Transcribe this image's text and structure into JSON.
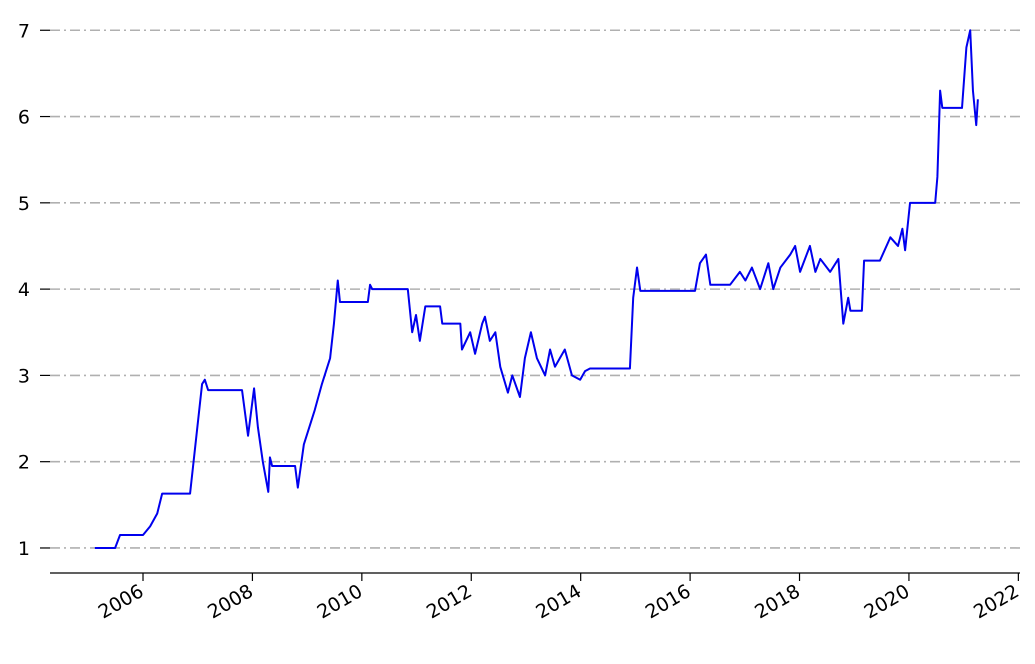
{
  "chart_data": {
    "type": "line",
    "color": "#0000ee",
    "grid": true,
    "xlim": [
      2004.3,
      2022.03
    ],
    "ylim": [
      0.71,
      7.2
    ],
    "xticks": [
      2006,
      2008,
      2010,
      2012,
      2014,
      2016,
      2018,
      2020,
      2022
    ],
    "yticks": [
      1,
      2,
      3,
      4,
      5,
      6,
      7
    ],
    "x": [
      2005.12,
      2005.49,
      2005.58,
      2006.0,
      2006.13,
      2006.26,
      2006.35,
      2006.86,
      2007.08,
      2007.13,
      2007.19,
      2007.81,
      2007.92,
      2008.03,
      2008.1,
      2008.19,
      2008.29,
      2008.32,
      2008.36,
      2008.78,
      2008.83,
      2008.94,
      2009.14,
      2009.27,
      2009.42,
      2009.49,
      2009.56,
      2009.6,
      2010.11,
      2010.15,
      2010.19,
      2010.84,
      2010.92,
      2010.99,
      2011.06,
      2011.16,
      2011.43,
      2011.47,
      2011.8,
      2011.83,
      2011.98,
      2012.07,
      2012.2,
      2012.25,
      2012.34,
      2012.44,
      2012.53,
      2012.67,
      2012.75,
      2012.89,
      2012.98,
      2013.09,
      2013.2,
      2013.35,
      2013.44,
      2013.53,
      2013.71,
      2013.84,
      2013.99,
      2014.08,
      2014.17,
      2014.9,
      2014.96,
      2015.03,
      2015.09,
      2016.09,
      2016.18,
      2016.29,
      2016.37,
      2016.73,
      2016.91,
      2017.01,
      2017.13,
      2017.28,
      2017.43,
      2017.52,
      2017.65,
      2017.83,
      2017.92,
      2018.01,
      2018.19,
      2018.29,
      2018.38,
      2018.56,
      2018.71,
      2018.8,
      2018.89,
      2018.93,
      2019.14,
      2019.18,
      2019.47,
      2019.66,
      2019.8,
      2019.88,
      2019.93,
      2020.02,
      2020.48,
      2020.52,
      2020.57,
      2020.61,
      2020.97,
      2021.05,
      2021.12,
      2021.17,
      2021.23,
      2021.26
    ],
    "values": [
      1.0,
      1.0,
      1.15,
      1.15,
      1.25,
      1.4,
      1.63,
      1.63,
      2.9,
      2.95,
      2.83,
      2.83,
      2.3,
      2.85,
      2.4,
      2.0,
      1.65,
      2.05,
      1.95,
      1.95,
      1.7,
      2.2,
      2.6,
      2.9,
      3.2,
      3.6,
      4.1,
      3.85,
      3.85,
      4.05,
      4.0,
      4.0,
      3.5,
      3.7,
      3.4,
      3.8,
      3.8,
      3.6,
      3.6,
      3.3,
      3.5,
      3.25,
      3.6,
      3.68,
      3.4,
      3.5,
      3.1,
      2.8,
      3.0,
      2.75,
      3.2,
      3.5,
      3.2,
      3.0,
      3.3,
      3.1,
      3.3,
      3.0,
      2.95,
      3.05,
      3.08,
      3.08,
      3.9,
      4.25,
      3.98,
      3.98,
      4.3,
      4.4,
      4.05,
      4.05,
      4.2,
      4.1,
      4.25,
      4.0,
      4.3,
      4.0,
      4.25,
      4.4,
      4.5,
      4.2,
      4.5,
      4.2,
      4.35,
      4.2,
      4.35,
      3.6,
      3.9,
      3.75,
      3.75,
      4.33,
      4.33,
      4.6,
      4.5,
      4.7,
      4.45,
      5.0,
      5.0,
      5.3,
      6.3,
      6.1,
      6.1,
      6.8,
      7.0,
      6.3,
      5.9,
      6.2
    ]
  }
}
